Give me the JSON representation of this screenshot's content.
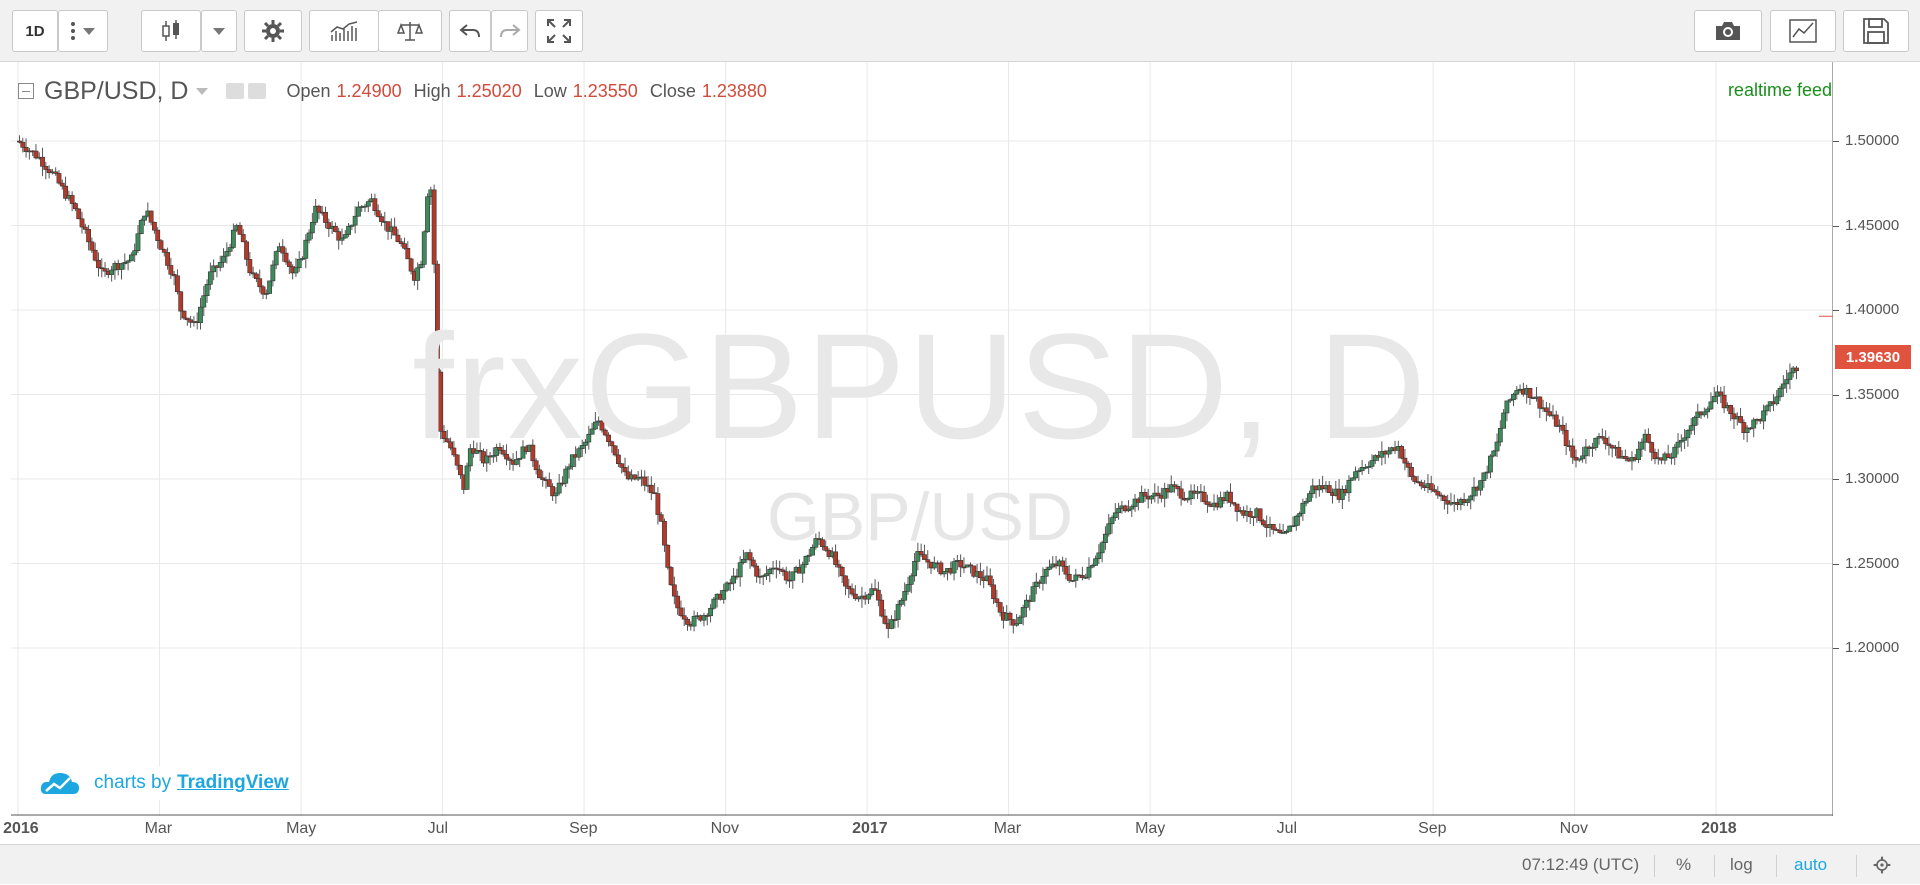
{
  "toolbar": {
    "interval_label": "1D",
    "icons": [
      "more-vertical-icon",
      "chevron-down-icon",
      "candles-icon",
      "chevron-down-icon",
      "gear-icon",
      "indicators-icon",
      "compare-scale-icon",
      "undo-icon",
      "redo-icon",
      "fullscreen-icon",
      "camera-icon",
      "chart-line-icon",
      "save-icon"
    ]
  },
  "legend": {
    "symbol": "GBP/USD, D",
    "open_label": "Open",
    "open_value": "1.24900",
    "high_label": "High",
    "high_value": "1.25020",
    "low_label": "Low",
    "low_value": "1.23550",
    "close_label": "Close",
    "close_value": "1.23880"
  },
  "status": {
    "realtime": "realtime feed"
  },
  "watermark": {
    "main": "frxGBPUSD, D",
    "sub": "GBP/USD"
  },
  "attribution": {
    "prefix": "charts by",
    "brand": "TradingView"
  },
  "last_price": "1.39630",
  "colors": {
    "up": "#3d8a5b",
    "down": "#b33a2a",
    "last_price": "#e0533f",
    "accent": "#1ca7e0"
  },
  "bottom_bar": {
    "time": "07:12:49 (UTC)",
    "percent": "%",
    "log": "log",
    "auto": "auto"
  },
  "chart_data": {
    "type": "candlestick",
    "price_ticks": [
      "1.50000",
      "1.45000",
      "1.40000",
      "1.35000",
      "1.30000",
      "1.25000",
      "1.20000"
    ],
    "price_tick_values": [
      1.5,
      1.45,
      1.4,
      1.35,
      1.3,
      1.25,
      1.2
    ],
    "time_ticks": [
      {
        "label": "2016",
        "bold": true,
        "index": 0
      },
      {
        "label": "Mar",
        "bold": false,
        "index": 2
      },
      {
        "label": "May",
        "bold": false,
        "index": 4
      },
      {
        "label": "Jul",
        "bold": false,
        "index": 6
      },
      {
        "label": "Sep",
        "bold": false,
        "index": 8
      },
      {
        "label": "Nov",
        "bold": false,
        "index": 10
      },
      {
        "label": "2017",
        "bold": true,
        "index": 12
      },
      {
        "label": "Mar",
        "bold": false,
        "index": 14
      },
      {
        "label": "May",
        "bold": false,
        "index": 16
      },
      {
        "label": "Jul",
        "bold": false,
        "index": 18
      },
      {
        "label": "Sep",
        "bold": false,
        "index": 20
      },
      {
        "label": "Nov",
        "bold": false,
        "index": 22
      },
      {
        "label": "2018",
        "bold": true,
        "index": 24
      }
    ],
    "ylim": [
      1.175,
      1.51
    ],
    "x_range_months": [
      -0.1,
      25.2
    ],
    "close_path": [
      [
        -0.1,
        1.52
      ],
      [
        0.0,
        1.5
      ],
      [
        0.3,
        1.49
      ],
      [
        0.5,
        1.48
      ],
      [
        0.8,
        1.46
      ],
      [
        1.0,
        1.44
      ],
      [
        1.2,
        1.42
      ],
      [
        1.3,
        1.425
      ],
      [
        1.6,
        1.43
      ],
      [
        1.8,
        1.46
      ],
      [
        2.0,
        1.44
      ],
      [
        2.2,
        1.42
      ],
      [
        2.3,
        1.4
      ],
      [
        2.5,
        1.39
      ],
      [
        2.7,
        1.42
      ],
      [
        2.9,
        1.43
      ],
      [
        3.1,
        1.45
      ],
      [
        3.3,
        1.42
      ],
      [
        3.5,
        1.41
      ],
      [
        3.7,
        1.44
      ],
      [
        3.9,
        1.42
      ],
      [
        4.0,
        1.43
      ],
      [
        4.2,
        1.46
      ],
      [
        4.4,
        1.45
      ],
      [
        4.6,
        1.44
      ],
      [
        4.8,
        1.46
      ],
      [
        5.0,
        1.465
      ],
      [
        5.2,
        1.45
      ],
      [
        5.4,
        1.44
      ],
      [
        5.6,
        1.42
      ],
      [
        5.7,
        1.43
      ],
      [
        5.8,
        1.475
      ],
      [
        5.85,
        1.47
      ],
      [
        5.95,
        1.33
      ],
      [
        6.1,
        1.32
      ],
      [
        6.3,
        1.295
      ],
      [
        6.4,
        1.32
      ],
      [
        6.6,
        1.31
      ],
      [
        6.8,
        1.32
      ],
      [
        7.0,
        1.31
      ],
      [
        7.2,
        1.32
      ],
      [
        7.4,
        1.3
      ],
      [
        7.6,
        1.29
      ],
      [
        7.8,
        1.31
      ],
      [
        8.0,
        1.32
      ],
      [
        8.2,
        1.335
      ],
      [
        8.4,
        1.32
      ],
      [
        8.6,
        1.3
      ],
      [
        8.8,
        1.3
      ],
      [
        9.0,
        1.29
      ],
      [
        9.1,
        1.27
      ],
      [
        9.2,
        1.24
      ],
      [
        9.3,
        1.225
      ],
      [
        9.5,
        1.215
      ],
      [
        9.7,
        1.22
      ],
      [
        9.9,
        1.23
      ],
      [
        10.1,
        1.24
      ],
      [
        10.3,
        1.255
      ],
      [
        10.5,
        1.24
      ],
      [
        10.7,
        1.25
      ],
      [
        10.9,
        1.24
      ],
      [
        11.1,
        1.25
      ],
      [
        11.3,
        1.265
      ],
      [
        11.5,
        1.255
      ],
      [
        11.7,
        1.235
      ],
      [
        11.9,
        1.23
      ],
      [
        12.1,
        1.235
      ],
      [
        12.3,
        1.21
      ],
      [
        12.5,
        1.23
      ],
      [
        12.7,
        1.255
      ],
      [
        12.9,
        1.25
      ],
      [
        13.1,
        1.245
      ],
      [
        13.3,
        1.25
      ],
      [
        13.5,
        1.245
      ],
      [
        13.7,
        1.24
      ],
      [
        13.9,
        1.22
      ],
      [
        14.1,
        1.215
      ],
      [
        14.3,
        1.23
      ],
      [
        14.5,
        1.245
      ],
      [
        14.7,
        1.25
      ],
      [
        14.9,
        1.24
      ],
      [
        15.1,
        1.245
      ],
      [
        15.3,
        1.26
      ],
      [
        15.5,
        1.28
      ],
      [
        15.7,
        1.285
      ],
      [
        15.9,
        1.29
      ],
      [
        16.1,
        1.29
      ],
      [
        16.3,
        1.295
      ],
      [
        16.5,
        1.29
      ],
      [
        16.7,
        1.29
      ],
      [
        16.9,
        1.285
      ],
      [
        17.1,
        1.29
      ],
      [
        17.3,
        1.28
      ],
      [
        17.5,
        1.28
      ],
      [
        17.7,
        1.27
      ],
      [
        17.9,
        1.265
      ],
      [
        18.1,
        1.28
      ],
      [
        18.3,
        1.295
      ],
      [
        18.5,
        1.295
      ],
      [
        18.7,
        1.29
      ],
      [
        18.9,
        1.305
      ],
      [
        19.1,
        1.31
      ],
      [
        19.3,
        1.315
      ],
      [
        19.5,
        1.32
      ],
      [
        19.7,
        1.3
      ],
      [
        19.9,
        1.295
      ],
      [
        20.1,
        1.29
      ],
      [
        20.3,
        1.285
      ],
      [
        20.5,
        1.29
      ],
      [
        20.7,
        1.3
      ],
      [
        20.9,
        1.32
      ],
      [
        21.0,
        1.34
      ],
      [
        21.2,
        1.355
      ],
      [
        21.4,
        1.35
      ],
      [
        21.6,
        1.34
      ],
      [
        21.8,
        1.33
      ],
      [
        22.0,
        1.31
      ],
      [
        22.2,
        1.32
      ],
      [
        22.4,
        1.325
      ],
      [
        22.6,
        1.315
      ],
      [
        22.8,
        1.31
      ],
      [
        23.0,
        1.325
      ],
      [
        23.2,
        1.31
      ],
      [
        23.4,
        1.315
      ],
      [
        23.6,
        1.33
      ],
      [
        23.8,
        1.34
      ],
      [
        24.0,
        1.35
      ],
      [
        24.2,
        1.34
      ],
      [
        24.4,
        1.33
      ],
      [
        24.6,
        1.335
      ],
      [
        24.8,
        1.345
      ],
      [
        25.0,
        1.36
      ],
      [
        25.2,
        1.37
      ]
    ]
  }
}
